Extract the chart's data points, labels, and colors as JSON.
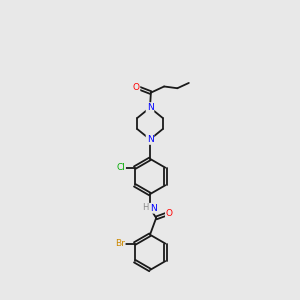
{
  "background_color": "#e8e8e8",
  "bond_color": "#1a1a1a",
  "atom_colors": {
    "O": "#ff0000",
    "N": "#0000ff",
    "Cl": "#00aa00",
    "Br": "#cc8800",
    "H": "#888888"
  },
  "figsize": [
    3.0,
    3.0
  ],
  "dpi": 100
}
